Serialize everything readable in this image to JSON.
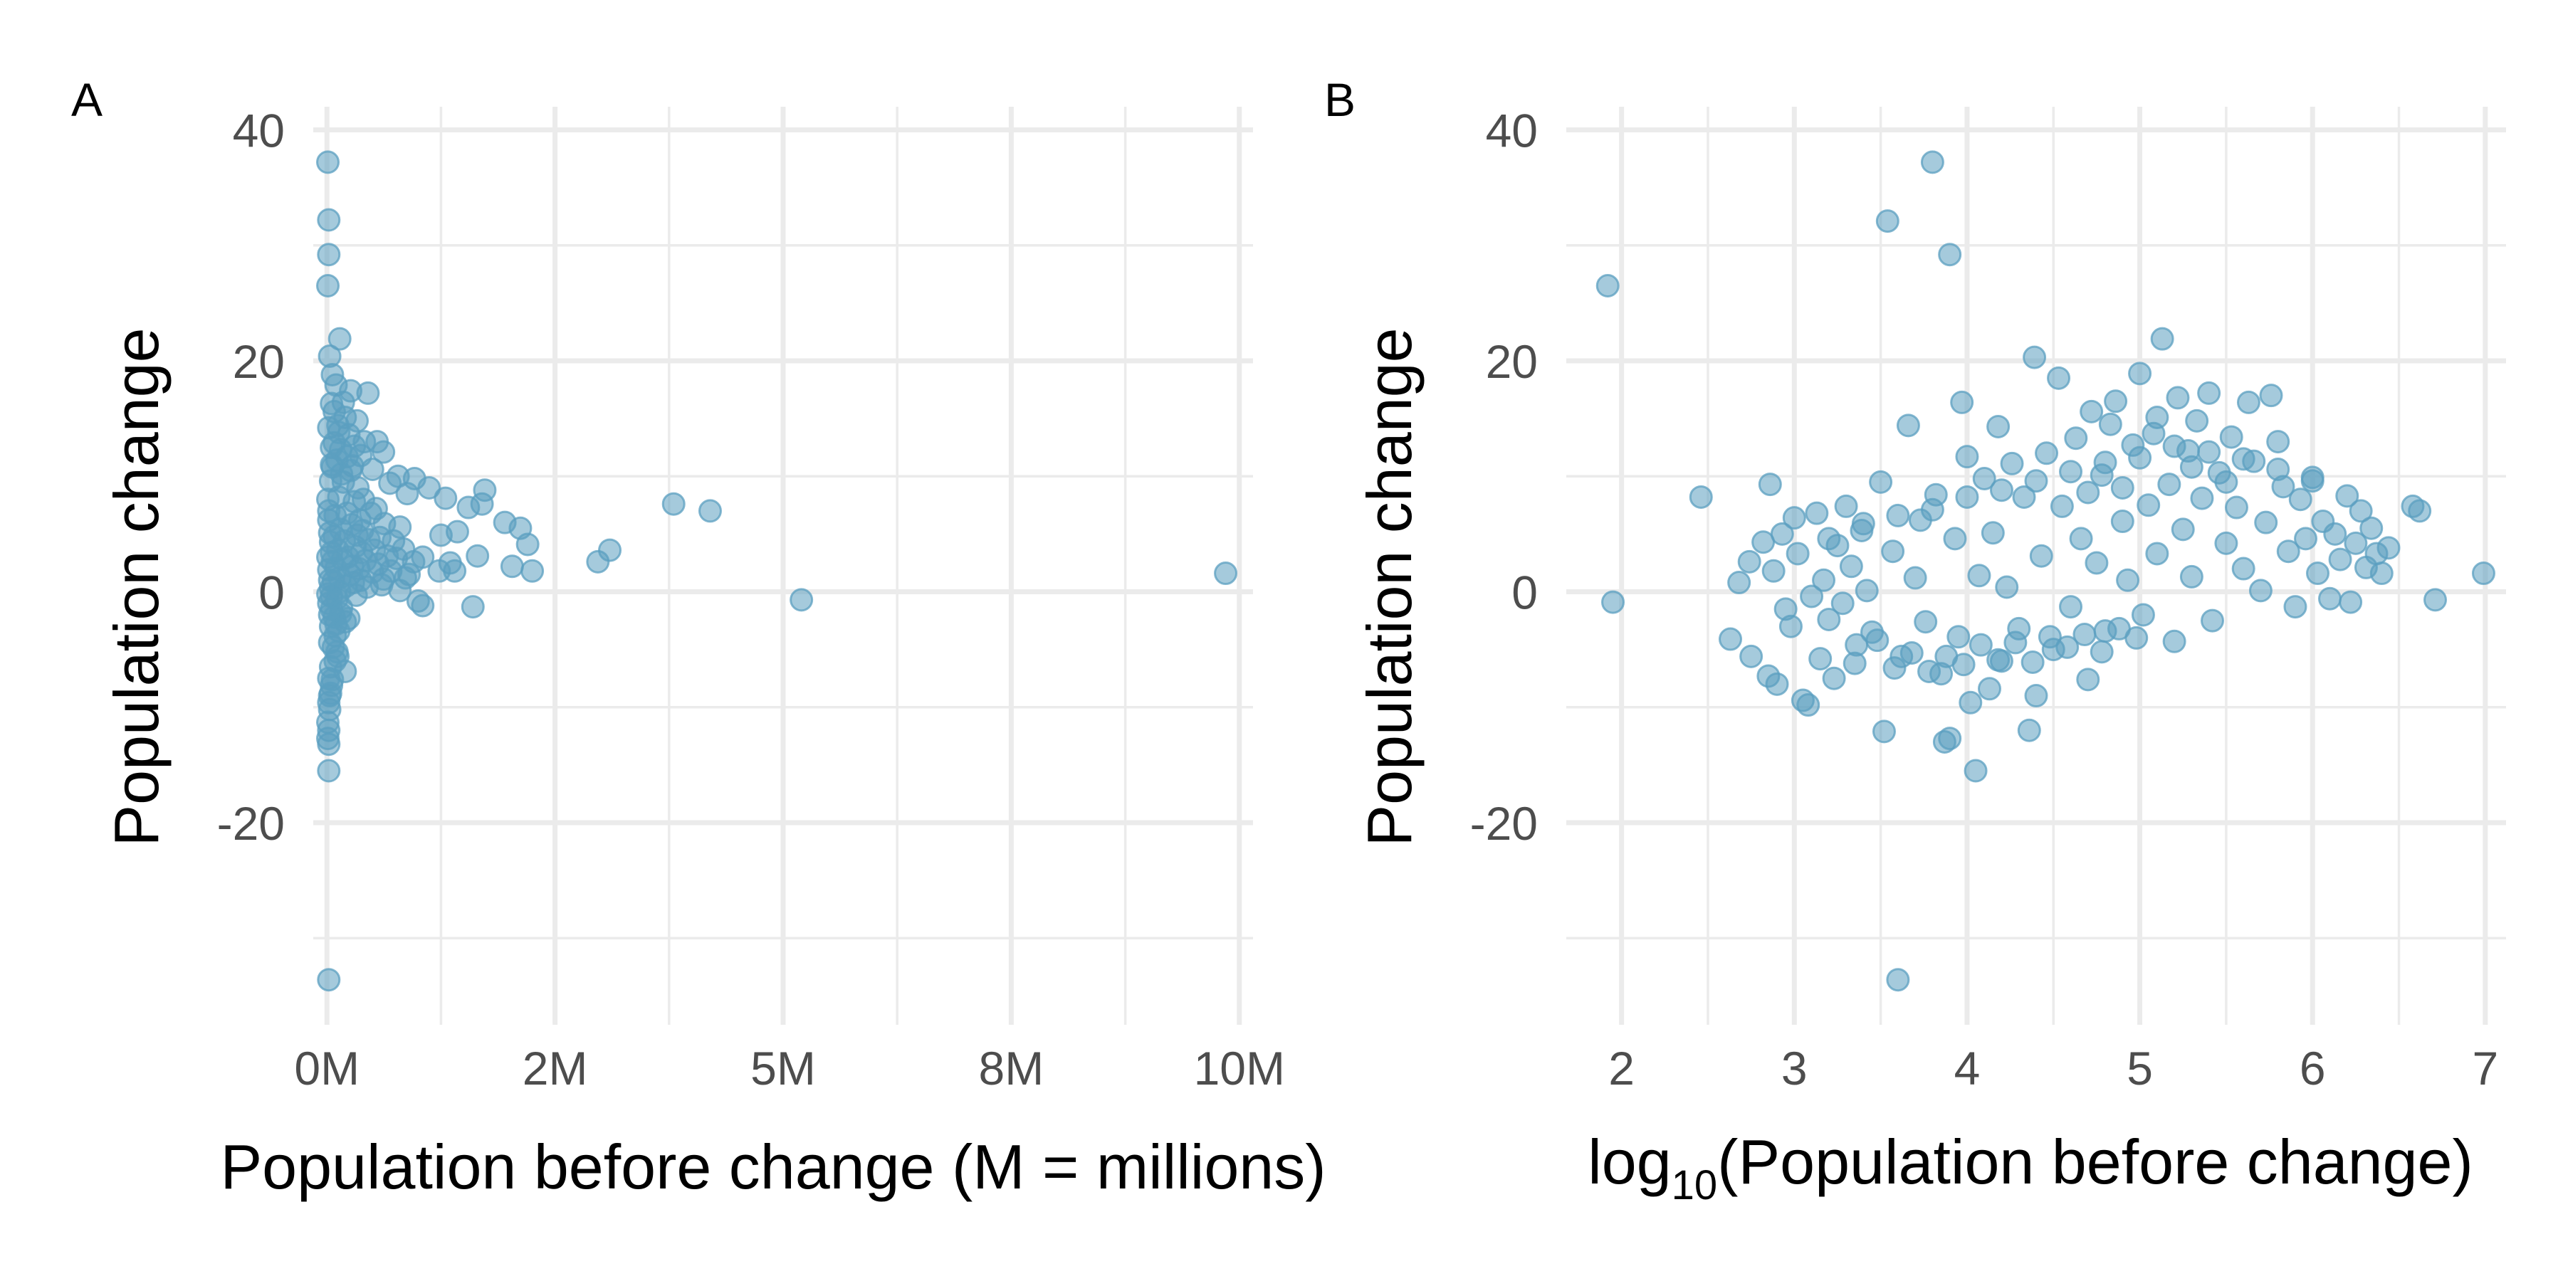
{
  "chart_data": [
    {
      "type": "scatter",
      "panel_label": "A",
      "xlabel": "Population before change (M = millions)",
      "ylabel": "Population change",
      "xlim": [
        -0.15,
        10.15
      ],
      "ylim": [
        -37.5,
        42
      ],
      "x_ticks": [
        0,
        2.5,
        5,
        7.5,
        10
      ],
      "x_tick_labels": [
        "0M",
        "2M",
        "5M",
        "8M",
        "10M"
      ],
      "y_ticks": [
        -20,
        0,
        20,
        40
      ],
      "y_tick_labels": [
        "-20",
        "0",
        "20",
        "40"
      ],
      "grid": true,
      "color": "#5b9fc0",
      "points": [
        [
          0.01,
          37.2
        ],
        [
          0.02,
          32.2
        ],
        [
          0.02,
          29.2
        ],
        [
          0.01,
          26.5
        ],
        [
          0.03,
          20.4
        ],
        [
          0.14,
          21.9
        ],
        [
          0.06,
          18.8
        ],
        [
          0.1,
          17.9
        ],
        [
          0.18,
          16.4
        ],
        [
          0.26,
          17.4
        ],
        [
          0.45,
          17.2
        ],
        [
          0.05,
          16.3
        ],
        [
          0.08,
          15.6
        ],
        [
          0.2,
          15.1
        ],
        [
          0.33,
          14.8
        ],
        [
          0.02,
          14.2
        ],
        [
          0.12,
          14.4
        ],
        [
          0.24,
          13.6
        ],
        [
          0.41,
          13.0
        ],
        [
          0.55,
          13.0
        ],
        [
          0.3,
          12.6
        ],
        [
          0.05,
          12.5
        ],
        [
          0.15,
          12.3
        ],
        [
          0.22,
          11.7
        ],
        [
          0.37,
          11.8
        ],
        [
          0.62,
          12.1
        ],
        [
          0.05,
          11.0
        ],
        [
          0.28,
          10.9
        ],
        [
          0.5,
          10.6
        ],
        [
          0.78,
          10.0
        ],
        [
          0.96,
          9.8
        ],
        [
          0.69,
          9.4
        ],
        [
          1.12,
          9.0
        ],
        [
          1.73,
          8.8
        ],
        [
          0.88,
          8.5
        ],
        [
          0.04,
          9.6
        ],
        [
          1.3,
          8.1
        ],
        [
          1.7,
          7.6
        ],
        [
          1.55,
          7.3
        ],
        [
          3.8,
          7.6
        ],
        [
          4.2,
          7.0
        ],
        [
          1.95,
          6.0
        ],
        [
          2.12,
          5.5
        ],
        [
          1.43,
          5.2
        ],
        [
          1.25,
          4.9
        ],
        [
          2.2,
          4.1
        ],
        [
          2.03,
          2.2
        ],
        [
          1.65,
          3.1
        ],
        [
          1.35,
          2.5
        ],
        [
          1.23,
          1.8
        ],
        [
          1.4,
          1.8
        ],
        [
          2.25,
          1.8
        ],
        [
          3.1,
          3.6
        ],
        [
          2.97,
          2.6
        ],
        [
          1.05,
          3.0
        ],
        [
          0.95,
          2.6
        ],
        [
          0.9,
          1.5
        ],
        [
          1.6,
          -1.3
        ],
        [
          1.05,
          -1.2
        ],
        [
          1.0,
          -0.8
        ],
        [
          0.62,
          1.1
        ],
        [
          0.8,
          0.1
        ],
        [
          0.05,
          -1.5
        ],
        [
          0.2,
          -2.6
        ],
        [
          0.09,
          -3.8
        ],
        [
          0.03,
          -4.4
        ],
        [
          0.12,
          -5.6
        ],
        [
          0.04,
          -6.5
        ],
        [
          0.2,
          -6.9
        ],
        [
          0.02,
          -7.5
        ],
        [
          0.05,
          -8.1
        ],
        [
          0.03,
          -9.0
        ],
        [
          0.02,
          -9.6
        ],
        [
          0.03,
          -10.2
        ],
        [
          0.01,
          -11.3
        ],
        [
          0.02,
          -12.0
        ],
        [
          0.01,
          -12.7
        ],
        [
          0.02,
          -13.2
        ],
        [
          0.02,
          -15.5
        ],
        [
          0.02,
          -33.6
        ],
        [
          5.2,
          -0.7
        ],
        [
          9.85,
          1.6
        ],
        [
          0.01,
          8.0
        ],
        [
          0.02,
          6.2
        ],
        [
          0.03,
          5.1
        ],
        [
          0.04,
          4.3
        ],
        [
          0.05,
          3.4
        ],
        [
          0.06,
          2.6
        ],
        [
          0.02,
          1.9
        ],
        [
          0.03,
          1.0
        ],
        [
          0.04,
          0.3
        ],
        [
          0.05,
          -0.4
        ],
        [
          0.02,
          -1.0
        ],
        [
          0.03,
          -2.0
        ],
        [
          0.04,
          -3.0
        ],
        [
          0.01,
          -0.2
        ],
        [
          0.01,
          3.0
        ],
        [
          0.02,
          7.0
        ],
        [
          0.07,
          0.9
        ],
        [
          0.08,
          4.8
        ],
        [
          0.09,
          6.6
        ],
        [
          0.1,
          2.0
        ],
        [
          0.11,
          -0.6
        ],
        [
          0.12,
          3.6
        ],
        [
          0.13,
          8.2
        ],
        [
          0.14,
          1.2
        ],
        [
          0.15,
          5.4
        ],
        [
          0.16,
          -1.4
        ],
        [
          0.17,
          2.8
        ],
        [
          0.18,
          9.5
        ],
        [
          0.19,
          4.4
        ],
        [
          0.21,
          0.5
        ],
        [
          0.22,
          6.8
        ],
        [
          0.23,
          3.0
        ],
        [
          0.24,
          -2.3
        ],
        [
          0.25,
          1.5
        ],
        [
          0.26,
          10.5
        ],
        [
          0.27,
          5.8
        ],
        [
          0.28,
          2.2
        ],
        [
          0.29,
          0.8
        ],
        [
          0.3,
          7.8
        ],
        [
          0.31,
          3.9
        ],
        [
          0.32,
          -0.3
        ],
        [
          0.33,
          4.9
        ],
        [
          0.34,
          9.0
        ],
        [
          0.35,
          2.0
        ],
        [
          0.36,
          6.2
        ],
        [
          0.37,
          1.0
        ],
        [
          0.38,
          3.4
        ],
        [
          0.39,
          5.3
        ],
        [
          0.4,
          8.0
        ],
        [
          0.42,
          2.7
        ],
        [
          0.44,
          0.4
        ],
        [
          0.46,
          4.5
        ],
        [
          0.48,
          6.8
        ],
        [
          0.5,
          1.7
        ],
        [
          0.52,
          3.6
        ],
        [
          0.54,
          7.2
        ],
        [
          0.56,
          2.4
        ],
        [
          0.58,
          4.7
        ],
        [
          0.6,
          0.6
        ],
        [
          0.63,
          5.9
        ],
        [
          0.66,
          3.1
        ],
        [
          0.7,
          1.8
        ],
        [
          0.73,
          4.4
        ],
        [
          0.76,
          2.9
        ],
        [
          0.8,
          5.6
        ],
        [
          0.84,
          3.7
        ],
        [
          0.86,
          1.2
        ],
        [
          0.06,
          10.8
        ],
        [
          0.08,
          12.9
        ],
        [
          0.11,
          11.4
        ],
        [
          0.13,
          13.8
        ],
        [
          0.16,
          10.2
        ],
        [
          0.07,
          -4.8
        ],
        [
          0.09,
          -6.0
        ],
        [
          0.1,
          -2.8
        ],
        [
          0.13,
          -3.4
        ],
        [
          0.06,
          -7.6
        ],
        [
          0.04,
          -8.8
        ],
        [
          0.15,
          -1.9
        ],
        [
          0.11,
          -5.2
        ],
        [
          0.08,
          -2.2
        ],
        [
          0.14,
          0.0
        ]
      ]
    },
    {
      "type": "scatter",
      "panel_label": "B",
      "xlabel_main": "log",
      "xlabel_sub": "10",
      "xlabel_rest": "(Population before change)",
      "ylabel": "Population change",
      "xlim": [
        1.68,
        7.12
      ],
      "ylim": [
        -37.5,
        42
      ],
      "x_ticks": [
        2,
        3,
        4,
        5,
        6,
        7
      ],
      "x_tick_labels": [
        "2",
        "3",
        "4",
        "5",
        "6",
        "7"
      ],
      "y_ticks": [
        -20,
        0,
        20,
        40
      ],
      "y_tick_labels": [
        "-20",
        "0",
        "20",
        "40"
      ],
      "grid": true,
      "color": "#5b9fc0",
      "points": [
        [
          1.92,
          26.5
        ],
        [
          1.95,
          -0.9
        ],
        [
          2.46,
          8.2
        ],
        [
          2.63,
          -4.1
        ],
        [
          2.75,
          -5.6
        ],
        [
          2.68,
          0.8
        ],
        [
          2.74,
          2.6
        ],
        [
          2.82,
          4.3
        ],
        [
          2.85,
          -7.3
        ],
        [
          2.9,
          -8.0
        ],
        [
          2.93,
          5.0
        ],
        [
          2.88,
          1.8
        ],
        [
          2.95,
          -1.5
        ],
        [
          2.98,
          -3.0
        ],
        [
          3.0,
          6.4
        ],
        [
          3.02,
          3.3
        ],
        [
          2.86,
          9.3
        ],
        [
          3.05,
          -9.4
        ],
        [
          3.08,
          -9.8
        ],
        [
          3.1,
          -0.4
        ],
        [
          3.13,
          6.8
        ],
        [
          3.17,
          1.0
        ],
        [
          3.2,
          -2.4
        ],
        [
          3.23,
          -7.5
        ],
        [
          3.25,
          4.0
        ],
        [
          3.28,
          -1.0
        ],
        [
          3.3,
          7.4
        ],
        [
          3.33,
          2.2
        ],
        [
          3.36,
          -4.6
        ],
        [
          3.39,
          5.3
        ],
        [
          3.42,
          0.1
        ],
        [
          3.45,
          -3.5
        ],
        [
          3.5,
          9.5
        ],
        [
          3.52,
          -12.1
        ],
        [
          3.54,
          32.1
        ],
        [
          3.57,
          3.5
        ],
        [
          3.6,
          -33.6
        ],
        [
          3.62,
          -5.6
        ],
        [
          3.66,
          14.4
        ],
        [
          3.7,
          1.2
        ],
        [
          3.73,
          6.2
        ],
        [
          3.76,
          -2.6
        ],
        [
          3.8,
          37.2
        ],
        [
          3.82,
          8.4
        ],
        [
          3.85,
          -7.1
        ],
        [
          3.87,
          -13.0
        ],
        [
          3.9,
          29.2
        ],
        [
          3.9,
          -12.7
        ],
        [
          3.93,
          4.6
        ],
        [
          3.95,
          -3.9
        ],
        [
          3.97,
          16.4
        ],
        [
          4.0,
          11.7
        ],
        [
          4.02,
          -9.6
        ],
        [
          4.05,
          -15.5
        ],
        [
          4.07,
          1.4
        ],
        [
          4.1,
          9.8
        ],
        [
          4.13,
          -8.4
        ],
        [
          4.15,
          5.1
        ],
        [
          4.18,
          14.3
        ],
        [
          4.2,
          -6.0
        ],
        [
          4.23,
          0.4
        ],
        [
          4.26,
          11.1
        ],
        [
          4.3,
          -3.2
        ],
        [
          4.33,
          8.2
        ],
        [
          4.36,
          -12.0
        ],
        [
          4.39,
          20.3
        ],
        [
          4.4,
          -9.0
        ],
        [
          4.43,
          3.1
        ],
        [
          4.46,
          12.0
        ],
        [
          4.5,
          -5.0
        ],
        [
          4.53,
          18.5
        ],
        [
          4.55,
          7.4
        ],
        [
          4.6,
          -1.3
        ],
        [
          4.63,
          13.3
        ],
        [
          4.66,
          4.6
        ],
        [
          4.7,
          -7.6
        ],
        [
          4.72,
          15.6
        ],
        [
          4.75,
          2.5
        ],
        [
          4.78,
          10.1
        ],
        [
          4.8,
          -3.4
        ],
        [
          4.83,
          14.5
        ],
        [
          4.86,
          16.5
        ],
        [
          4.9,
          6.1
        ],
        [
          4.93,
          1.0
        ],
        [
          4.96,
          12.7
        ],
        [
          5.0,
          18.9
        ],
        [
          5.02,
          -2.0
        ],
        [
          5.05,
          7.5
        ],
        [
          5.08,
          13.7
        ],
        [
          5.1,
          3.3
        ],
        [
          5.13,
          21.9
        ],
        [
          5.17,
          9.3
        ],
        [
          5.2,
          -4.3
        ],
        [
          5.22,
          16.8
        ],
        [
          5.25,
          5.4
        ],
        [
          5.28,
          12.2
        ],
        [
          5.3,
          1.3
        ],
        [
          5.33,
          14.8
        ],
        [
          5.36,
          8.1
        ],
        [
          5.4,
          17.2
        ],
        [
          5.42,
          -2.5
        ],
        [
          5.46,
          10.3
        ],
        [
          5.5,
          4.2
        ],
        [
          5.53,
          13.4
        ],
        [
          5.56,
          7.3
        ],
        [
          5.6,
          2.0
        ],
        [
          5.63,
          16.4
        ],
        [
          5.66,
          11.3
        ],
        [
          5.7,
          0.1
        ],
        [
          5.73,
          6.0
        ],
        [
          5.76,
          17.0
        ],
        [
          5.8,
          13.0
        ],
        [
          5.83,
          9.1
        ],
        [
          5.86,
          3.5
        ],
        [
          5.9,
          -1.3
        ],
        [
          5.93,
          8.0
        ],
        [
          5.96,
          4.6
        ],
        [
          6.0,
          9.6
        ],
        [
          6.03,
          1.6
        ],
        [
          6.06,
          6.1
        ],
        [
          6.1,
          -0.6
        ],
        [
          6.13,
          5.0
        ],
        [
          6.16,
          2.8
        ],
        [
          6.2,
          8.3
        ],
        [
          6.22,
          -0.9
        ],
        [
          6.25,
          4.2
        ],
        [
          6.28,
          7.0
        ],
        [
          6.31,
          2.1
        ],
        [
          6.34,
          5.5
        ],
        [
          6.37,
          3.3
        ],
        [
          6.4,
          1.6
        ],
        [
          6.44,
          3.8
        ],
        [
          6.58,
          7.4
        ],
        [
          6.62,
          7.0
        ],
        [
          6.71,
          -0.7
        ],
        [
          6.99,
          1.6
        ],
        [
          3.15,
          -5.8
        ],
        [
          3.35,
          -6.2
        ],
        [
          3.48,
          -4.2
        ],
        [
          3.58,
          -6.6
        ],
        [
          3.68,
          -5.3
        ],
        [
          3.78,
          -6.9
        ],
        [
          3.88,
          -5.6
        ],
        [
          3.98,
          -6.3
        ],
        [
          4.08,
          -4.6
        ],
        [
          4.18,
          -5.9
        ],
        [
          4.28,
          -4.4
        ],
        [
          4.38,
          -6.1
        ],
        [
          4.48,
          -3.9
        ],
        [
          4.58,
          -4.8
        ],
        [
          4.68,
          -3.7
        ],
        [
          4.78,
          -5.2
        ],
        [
          4.88,
          -3.2
        ],
        [
          4.98,
          -4.0
        ],
        [
          3.2,
          4.6
        ],
        [
          3.4,
          5.9
        ],
        [
          3.6,
          6.6
        ],
        [
          3.8,
          7.1
        ],
        [
          4.0,
          8.2
        ],
        [
          4.2,
          8.8
        ],
        [
          4.4,
          9.6
        ],
        [
          4.6,
          10.4
        ],
        [
          4.8,
          11.2
        ],
        [
          5.0,
          11.6
        ],
        [
          5.2,
          12.6
        ],
        [
          5.4,
          12.1
        ],
        [
          5.6,
          11.5
        ],
        [
          5.8,
          10.6
        ],
        [
          6.0,
          9.9
        ],
        [
          5.1,
          15.1
        ],
        [
          5.3,
          10.8
        ],
        [
          4.9,
          9.0
        ],
        [
          5.5,
          9.5
        ],
        [
          4.7,
          8.6
        ]
      ]
    }
  ]
}
